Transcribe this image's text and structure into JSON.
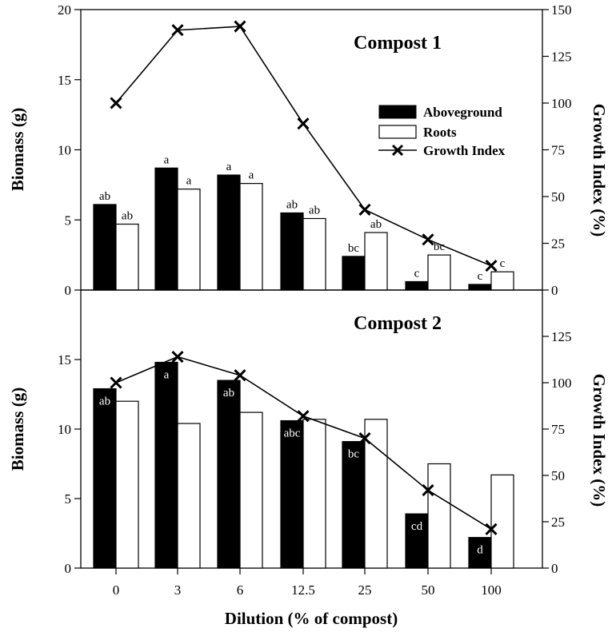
{
  "chart_data": [
    {
      "type": "bar",
      "title": "Compost 1",
      "categories": [
        "0",
        "3",
        "6",
        "12.5",
        "25",
        "50",
        "100"
      ],
      "ylabel": "Biomass (g)",
      "y2label": "Growth Index (%)",
      "ylim": [
        0,
        20
      ],
      "yticks": [
        "0",
        "5",
        "10",
        "15",
        "20"
      ],
      "y2lim": [
        0,
        150
      ],
      "y2ticks": [
        "0",
        "25",
        "50",
        "75",
        "100",
        "125",
        "150"
      ],
      "series": [
        {
          "name": "Aboveground",
          "kind": "bar",
          "fill": "#000000",
          "values": [
            6.1,
            8.7,
            8.2,
            5.5,
            2.4,
            0.6,
            0.4
          ],
          "labels": [
            "ab",
            "a",
            "a",
            "ab",
            "bc",
            "c",
            "c"
          ]
        },
        {
          "name": "Roots",
          "kind": "bar",
          "fill": "#ffffff",
          "values": [
            4.7,
            7.2,
            7.6,
            5.1,
            4.1,
            2.5,
            1.3
          ],
          "labels": [
            "ab",
            "a",
            "a",
            "ab",
            "ab",
            "bc",
            "c"
          ]
        },
        {
          "name": "Growth Index",
          "kind": "line",
          "axis": "right",
          "values": [
            100,
            139,
            141,
            89,
            43,
            27,
            13
          ]
        }
      ],
      "legend": [
        "Aboveground",
        "Roots",
        "Growth Index"
      ]
    },
    {
      "type": "bar",
      "title": "Compost 2",
      "categories": [
        "0",
        "3",
        "6",
        "12.5",
        "25",
        "50",
        "100"
      ],
      "xlabel": "Dilution (% of compost)",
      "ylabel": "Biomass (g)",
      "y2label": "Growth Index (%)",
      "ylim": [
        0,
        20
      ],
      "yticks": [
        "0",
        "5",
        "10",
        "15"
      ],
      "y2lim": [
        0,
        150
      ],
      "y2ticks": [
        "0",
        "25",
        "50",
        "75",
        "100",
        "125"
      ],
      "series": [
        {
          "name": "Aboveground",
          "kind": "bar",
          "fill": "#000000",
          "values": [
            12.9,
            14.8,
            13.5,
            10.6,
            9.1,
            3.9,
            2.2
          ],
          "labels": [
            "ab",
            "a",
            "ab",
            "abc",
            "bc",
            "cd",
            "d"
          ]
        },
        {
          "name": "Roots",
          "kind": "bar",
          "fill": "#ffffff",
          "values": [
            12.0,
            10.4,
            11.2,
            10.7,
            10.7,
            7.5,
            6.7
          ]
        },
        {
          "name": "Growth Index",
          "kind": "line",
          "axis": "right",
          "values": [
            100,
            114,
            104,
            82,
            70,
            42,
            21
          ]
        }
      ]
    }
  ]
}
